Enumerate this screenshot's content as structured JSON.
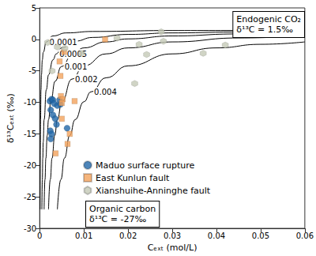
{
  "chart_data": {
    "type": "scatter",
    "x_label": "Cₑₓₜ (mol/L)",
    "y_label": "δ¹³Cₑₓₜ (‰)",
    "xlim": [
      0,
      0.06
    ],
    "xticks": [
      0,
      0.01,
      0.02,
      0.03,
      0.04,
      0.05,
      0.06
    ],
    "ylim": [
      -30,
      5
    ],
    "yticks": [
      -30,
      -25,
      -20,
      -15,
      -10,
      -5,
      0,
      5
    ],
    "grid": false,
    "legend": "lower left",
    "annotations": [
      {
        "text": [
          "Endogenic CO₂",
          "δ¹³C = 1.5‰"
        ]
      },
      {
        "text": [
          "Organic carbon",
          "δ¹³C = -27‰"
        ]
      }
    ],
    "series": [
      {
        "name": "Maduo surface rupture",
        "type": "scatter",
        "color": "#2166a8",
        "marker": "circle",
        "x": [
          0.0023,
          0.0027,
          0.003,
          0.0033,
          0.004,
          0.0045,
          0.0047,
          0.0025,
          0.003,
          0.0035,
          0.0038,
          0.0024,
          0.0027,
          0.0025,
          0.0062
        ],
        "values": [
          -9.8,
          -9.5,
          -9.6,
          -10.2,
          -10.5,
          -9.6,
          -10.3,
          -11.2,
          -12.0,
          -12.6,
          -13.5,
          -14.5,
          -15.0,
          -15.8,
          -14.1
        ]
      },
      {
        "name": "East Kunlun fault",
        "type": "scatter",
        "color": "#f3a35c",
        "marker": "square",
        "x": [
          0.0036,
          0.0048,
          0.0052,
          0.005,
          0.0045,
          0.0047,
          0.0055,
          0.0068,
          0.0063,
          0.0079,
          0.0148,
          0.005
        ],
        "values": [
          -18.1,
          -9.0,
          -9.5,
          -10.1,
          -3.5,
          -5.8,
          -2.0,
          -15.0,
          -16.6,
          -9.8,
          0.0,
          -12.6
        ]
      },
      {
        "name": "Xianshuihe-Anninghe fault",
        "type": "scatter",
        "color": "#c4c9b6",
        "marker": "hexagon",
        "x": [
          0.0018,
          0.0028,
          0.004,
          0.0057,
          0.0095,
          0.0175,
          0.0215,
          0.0225,
          0.0242,
          0.0275,
          0.028,
          0.037,
          0.042
        ],
        "values": [
          -0.5,
          -5.0,
          -1.2,
          -1.4,
          -2.2,
          0.2,
          -7.0,
          -0.8,
          -2.4,
          1.2,
          -0.3,
          -2.2,
          -0.9
        ]
      },
      {
        "name": "0.0001",
        "type": "line",
        "color": "#000000",
        "line_style": "solid",
        "x": [
          0.0001,
          0.00015,
          0.0002,
          0.0003,
          0.0004,
          0.0006,
          0.0008,
          0.0015,
          0.003,
          0.006,
          0.012,
          0.03,
          0.06
        ],
        "values": [
          -27,
          -17.5,
          -12.75,
          -8,
          -5.63,
          -3.25,
          -2.06,
          -0.4,
          0.55,
          1.03,
          1.26,
          1.41,
          1.45
        ]
      },
      {
        "name": "0.0005",
        "type": "line",
        "color": "#000000",
        "line_style": "solid",
        "x": [
          0.0005,
          0.0006,
          0.0007,
          0.0008,
          0.001,
          0.0015,
          0.002,
          0.003,
          0.00375,
          0.005,
          0.008,
          0.012,
          0.02,
          0.03,
          0.045,
          0.06
        ],
        "values": [
          -27,
          -22.25,
          -18.86,
          -16.31,
          -12.75,
          -8,
          -5.63,
          -3.25,
          -2.3,
          -1.35,
          -0.28,
          0.31,
          0.79,
          1.03,
          1.18,
          1.26
        ]
      },
      {
        "name": "0.001",
        "type": "line",
        "color": "#000000",
        "line_style": "solid",
        "x": [
          0.001,
          0.0012,
          0.0014,
          0.0017,
          0.002,
          0.0025,
          0.0035,
          0.0049,
          0.0075,
          0.01,
          0.015,
          0.02,
          0.03,
          0.045,
          0.06
        ],
        "values": [
          -27,
          -22.25,
          -18.86,
          -15.26,
          -12.75,
          -9.9,
          -6.64,
          -4.32,
          -2.3,
          -1.35,
          -0.4,
          0.08,
          0.55,
          0.87,
          1.03
        ]
      },
      {
        "name": "0.002",
        "type": "line",
        "color": "#000000",
        "line_style": "solid",
        "x": [
          0.002,
          0.0024,
          0.0028,
          0.0034,
          0.004,
          0.005,
          0.0073,
          0.01,
          0.015,
          0.02,
          0.03,
          0.045,
          0.06
        ],
        "values": [
          -27,
          -22.25,
          -18.86,
          -15.26,
          -12.75,
          -9.9,
          -6.31,
          -4.2,
          -2.3,
          -1.35,
          -0.4,
          0.23,
          0.55
        ]
      },
      {
        "name": "0.004",
        "type": "line",
        "color": "#000000",
        "line_style": "solid",
        "x": [
          0.004,
          0.0048,
          0.0056,
          0.0068,
          0.008,
          0.01,
          0.0116,
          0.015,
          0.02,
          0.03,
          0.04,
          0.05,
          0.06
        ],
        "values": [
          -27,
          -22.25,
          -18.86,
          -15.26,
          -12.75,
          -9.9,
          -8.33,
          -6.1,
          -4.2,
          -2.3,
          -1.35,
          -0.78,
          -0.4
        ]
      }
    ]
  }
}
